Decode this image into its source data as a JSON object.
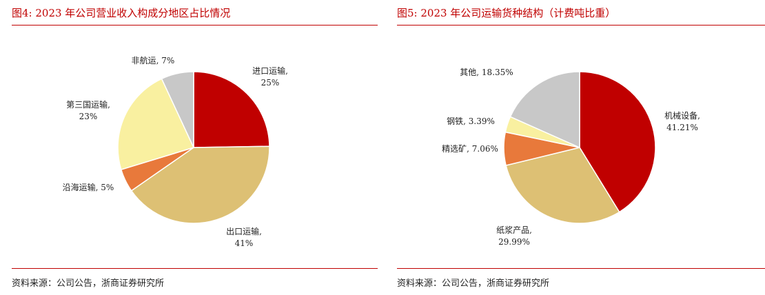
{
  "figures": [
    {
      "title": "图4:   2023 年公司营业收入构成分地区占比情况",
      "source": "资料来源：公司公告，浙商证券研究所"
    },
    {
      "title": "图5:   2023 年公司运输货种结构（计费吨比重）",
      "source": "资料来源：公司公告，浙商证券研究所"
    }
  ],
  "chart_data": [
    {
      "type": "pie",
      "title": "2023 年公司营业收入构成分地区占比情况",
      "slices": [
        {
          "name": "进口运输",
          "value": 25,
          "label_line1": "进口运输,",
          "label_line2": "25%",
          "color": "#c00000"
        },
        {
          "name": "出口运输",
          "value": 41,
          "label_line1": "出口运输,",
          "label_line2": "41%",
          "color": "#ddc074"
        },
        {
          "name": "沿海运输",
          "value": 5,
          "label_line1": "沿海运输, 5%",
          "label_line2": "",
          "color": "#e8793b"
        },
        {
          "name": "第三国运输",
          "value": 23,
          "label_line1": "第三国运输,",
          "label_line2": "23%",
          "color": "#f9f0a0"
        },
        {
          "name": "非航运",
          "value": 7,
          "label_line1": "非航运, 7%",
          "label_line2": "",
          "color": "#c8c8c8"
        }
      ]
    },
    {
      "type": "pie",
      "title": "2023 年公司运输货种结构（计费吨比重）",
      "slices": [
        {
          "name": "机械设备",
          "value": 41.21,
          "label_line1": "机械设备,",
          "label_line2": "41.21%",
          "color": "#c00000"
        },
        {
          "name": "纸浆产品",
          "value": 29.99,
          "label_line1": "纸浆产品,",
          "label_line2": "29.99%",
          "color": "#ddc074"
        },
        {
          "name": "精选矿",
          "value": 7.06,
          "label_line1": "精选矿, 7.06%",
          "label_line2": "",
          "color": "#e8793b"
        },
        {
          "name": "钢铁",
          "value": 3.39,
          "label_line1": "钢铁, 3.39%",
          "label_line2": "",
          "color": "#f9f0a0"
        },
        {
          "name": "其他",
          "value": 18.35,
          "label_line1": "其他, 18.35%",
          "label_line2": "",
          "color": "#c8c8c8"
        }
      ]
    }
  ]
}
